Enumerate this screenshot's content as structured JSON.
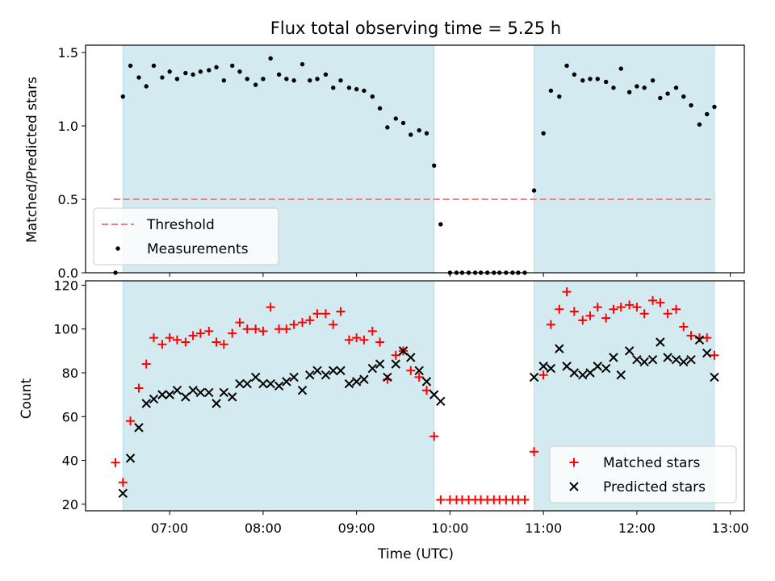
{
  "chart_data": {
    "title": "Flux total observing time = 5.25 h",
    "xlabel": "Time (UTC)",
    "x_range_hours": [
      6.1,
      13.15
    ],
    "x_ticks": [
      {
        "label": "07:00",
        "h": 7
      },
      {
        "label": "08:00",
        "h": 8
      },
      {
        "label": "09:00",
        "h": 9
      },
      {
        "label": "10:00",
        "h": 10
      },
      {
        "label": "11:00",
        "h": 11
      },
      {
        "label": "12:00",
        "h": 12
      },
      {
        "label": "13:00",
        "h": 13
      }
    ],
    "shaded_intervals_hours": [
      [
        6.5,
        9.83
      ],
      [
        10.9,
        12.83
      ]
    ],
    "colors": {
      "shade": "#d4eaf1",
      "shade_edge": "#b5dbe6",
      "threshold": "#f08080",
      "measurements": "#000000",
      "matched": "#ff0000",
      "predicted": "#000000"
    },
    "panels": [
      {
        "type": "scatter",
        "ylabel": "Matched/Predicted stars",
        "ylim": [
          0,
          1.55
        ],
        "yticks": [
          "0.0",
          "0.5",
          "1.0",
          "1.5"
        ],
        "ytick_values": [
          0,
          0.5,
          1.0,
          1.5
        ],
        "legend_position": "lower-left",
        "threshold": {
          "name": "Threshold",
          "value": 0.5,
          "x_range_hours": [
            6.4,
            12.83
          ]
        },
        "series": [
          {
            "name": "Measurements",
            "marker": "dot",
            "points": [
              [
                6.42,
                0.0
              ],
              [
                6.5,
                1.2
              ],
              [
                6.58,
                1.41
              ],
              [
                6.67,
                1.33
              ],
              [
                6.75,
                1.27
              ],
              [
                6.83,
                1.41
              ],
              [
                6.92,
                1.33
              ],
              [
                7.0,
                1.37
              ],
              [
                7.08,
                1.32
              ],
              [
                7.17,
                1.36
              ],
              [
                7.25,
                1.35
              ],
              [
                7.33,
                1.37
              ],
              [
                7.42,
                1.38
              ],
              [
                7.5,
                1.4
              ],
              [
                7.58,
                1.31
              ],
              [
                7.67,
                1.41
              ],
              [
                7.75,
                1.37
              ],
              [
                7.83,
                1.32
              ],
              [
                7.92,
                1.28
              ],
              [
                8.0,
                1.32
              ],
              [
                8.08,
                1.46
              ],
              [
                8.17,
                1.35
              ],
              [
                8.25,
                1.32
              ],
              [
                8.33,
                1.31
              ],
              [
                8.42,
                1.42
              ],
              [
                8.5,
                1.31
              ],
              [
                8.58,
                1.32
              ],
              [
                8.67,
                1.35
              ],
              [
                8.75,
                1.26
              ],
              [
                8.83,
                1.31
              ],
              [
                8.92,
                1.26
              ],
              [
                9.0,
                1.25
              ],
              [
                9.08,
                1.24
              ],
              [
                9.17,
                1.2
              ],
              [
                9.25,
                1.12
              ],
              [
                9.33,
                0.99
              ],
              [
                9.42,
                1.05
              ],
              [
                9.5,
                1.02
              ],
              [
                9.58,
                0.94
              ],
              [
                9.67,
                0.97
              ],
              [
                9.75,
                0.95
              ],
              [
                9.83,
                0.73
              ],
              [
                9.9,
                0.33
              ],
              [
                10.0,
                0.0
              ],
              [
                10.07,
                0.0
              ],
              [
                10.13,
                0.0
              ],
              [
                10.2,
                0.0
              ],
              [
                10.27,
                0.0
              ],
              [
                10.33,
                0.0
              ],
              [
                10.4,
                0.0
              ],
              [
                10.47,
                0.0
              ],
              [
                10.53,
                0.0
              ],
              [
                10.6,
                0.0
              ],
              [
                10.67,
                0.0
              ],
              [
                10.73,
                0.0
              ],
              [
                10.8,
                0.0
              ],
              [
                10.9,
                0.56
              ],
              [
                11.0,
                0.95
              ],
              [
                11.08,
                1.24
              ],
              [
                11.17,
                1.2
              ],
              [
                11.25,
                1.41
              ],
              [
                11.33,
                1.35
              ],
              [
                11.42,
                1.31
              ],
              [
                11.5,
                1.32
              ],
              [
                11.58,
                1.32
              ],
              [
                11.67,
                1.3
              ],
              [
                11.75,
                1.26
              ],
              [
                11.83,
                1.39
              ],
              [
                11.92,
                1.23
              ],
              [
                12.0,
                1.27
              ],
              [
                12.08,
                1.26
              ],
              [
                12.17,
                1.31
              ],
              [
                12.25,
                1.19
              ],
              [
                12.33,
                1.22
              ],
              [
                12.42,
                1.26
              ],
              [
                12.5,
                1.2
              ],
              [
                12.58,
                1.14
              ],
              [
                12.67,
                1.01
              ],
              [
                12.75,
                1.08
              ],
              [
                12.83,
                1.13
              ]
            ]
          }
        ]
      },
      {
        "type": "scatter",
        "ylabel": "Count",
        "ylim": [
          17,
          122
        ],
        "yticks": [
          "20",
          "40",
          "60",
          "80",
          "100",
          "120"
        ],
        "ytick_values": [
          20,
          40,
          60,
          80,
          100,
          120
        ],
        "legend_position": "lower-right",
        "series": [
          {
            "name": "Matched stars",
            "marker": "plus",
            "points": [
              [
                6.42,
                39
              ],
              [
                6.5,
                30
              ],
              [
                6.58,
                58
              ],
              [
                6.67,
                73
              ],
              [
                6.75,
                84
              ],
              [
                6.83,
                96
              ],
              [
                6.92,
                93
              ],
              [
                7.0,
                96
              ],
              [
                7.08,
                95
              ],
              [
                7.17,
                94
              ],
              [
                7.25,
                97
              ],
              [
                7.33,
                98
              ],
              [
                7.42,
                99
              ],
              [
                7.5,
                94
              ],
              [
                7.58,
                93
              ],
              [
                7.67,
                98
              ],
              [
                7.75,
                103
              ],
              [
                7.83,
                100
              ],
              [
                7.92,
                100
              ],
              [
                8.0,
                99
              ],
              [
                8.08,
                110
              ],
              [
                8.17,
                100
              ],
              [
                8.25,
                100
              ],
              [
                8.33,
                102
              ],
              [
                8.42,
                103
              ],
              [
                8.5,
                104
              ],
              [
                8.58,
                107
              ],
              [
                8.67,
                107
              ],
              [
                8.75,
                102
              ],
              [
                8.83,
                108
              ],
              [
                8.92,
                95
              ],
              [
                9.0,
                96
              ],
              [
                9.08,
                95
              ],
              [
                9.17,
                99
              ],
              [
                9.25,
                94
              ],
              [
                9.33,
                77
              ],
              [
                9.42,
                88
              ],
              [
                9.5,
                90
              ],
              [
                9.58,
                81
              ],
              [
                9.67,
                78
              ],
              [
                9.75,
                72
              ],
              [
                9.83,
                51
              ],
              [
                9.9,
                22
              ],
              [
                10.0,
                22
              ],
              [
                10.07,
                22
              ],
              [
                10.13,
                22
              ],
              [
                10.2,
                22
              ],
              [
                10.27,
                22
              ],
              [
                10.33,
                22
              ],
              [
                10.4,
                22
              ],
              [
                10.47,
                22
              ],
              [
                10.53,
                22
              ],
              [
                10.6,
                22
              ],
              [
                10.67,
                22
              ],
              [
                10.73,
                22
              ],
              [
                10.8,
                22
              ],
              [
                10.9,
                44
              ],
              [
                11.0,
                79
              ],
              [
                11.08,
                102
              ],
              [
                11.17,
                109
              ],
              [
                11.25,
                117
              ],
              [
                11.33,
                108
              ],
              [
                11.42,
                104
              ],
              [
                11.5,
                106
              ],
              [
                11.58,
                110
              ],
              [
                11.67,
                105
              ],
              [
                11.75,
                109
              ],
              [
                11.83,
                110
              ],
              [
                11.92,
                111
              ],
              [
                12.0,
                110
              ],
              [
                12.08,
                107
              ],
              [
                12.17,
                113
              ],
              [
                12.25,
                112
              ],
              [
                12.33,
                107
              ],
              [
                12.42,
                109
              ],
              [
                12.5,
                101
              ],
              [
                12.58,
                97
              ],
              [
                12.67,
                96
              ],
              [
                12.75,
                96
              ],
              [
                12.83,
                88
              ]
            ]
          },
          {
            "name": "Predicted stars",
            "marker": "x",
            "points": [
              [
                6.5,
                25
              ],
              [
                6.58,
                41
              ],
              [
                6.67,
                55
              ],
              [
                6.75,
                66
              ],
              [
                6.83,
                68
              ],
              [
                6.92,
                70
              ],
              [
                7.0,
                70
              ],
              [
                7.08,
                72
              ],
              [
                7.17,
                69
              ],
              [
                7.25,
                72
              ],
              [
                7.33,
                71
              ],
              [
                7.42,
                71
              ],
              [
                7.5,
                66
              ],
              [
                7.58,
                71
              ],
              [
                7.67,
                69
              ],
              [
                7.75,
                75
              ],
              [
                7.83,
                75
              ],
              [
                7.92,
                78
              ],
              [
                8.0,
                75
              ],
              [
                8.08,
                75
              ],
              [
                8.17,
                74
              ],
              [
                8.25,
                76
              ],
              [
                8.33,
                78
              ],
              [
                8.42,
                72
              ],
              [
                8.5,
                79
              ],
              [
                8.58,
                81
              ],
              [
                8.67,
                79
              ],
              [
                8.75,
                81
              ],
              [
                8.83,
                81
              ],
              [
                8.92,
                75
              ],
              [
                9.0,
                76
              ],
              [
                9.08,
                77
              ],
              [
                9.17,
                82
              ],
              [
                9.25,
                84
              ],
              [
                9.33,
                78
              ],
              [
                9.42,
                84
              ],
              [
                9.5,
                90
              ],
              [
                9.58,
                87
              ],
              [
                9.67,
                81
              ],
              [
                9.75,
                76
              ],
              [
                9.83,
                70
              ],
              [
                9.9,
                67
              ],
              [
                10.9,
                78
              ],
              [
                11.0,
                83
              ],
              [
                11.08,
                82
              ],
              [
                11.17,
                91
              ],
              [
                11.25,
                83
              ],
              [
                11.33,
                80
              ],
              [
                11.42,
                79
              ],
              [
                11.5,
                80
              ],
              [
                11.58,
                83
              ],
              [
                11.67,
                82
              ],
              [
                11.75,
                87
              ],
              [
                11.83,
                79
              ],
              [
                11.92,
                90
              ],
              [
                12.0,
                86
              ],
              [
                12.08,
                85
              ],
              [
                12.17,
                86
              ],
              [
                12.25,
                94
              ],
              [
                12.33,
                87
              ],
              [
                12.42,
                86
              ],
              [
                12.5,
                85
              ],
              [
                12.58,
                86
              ],
              [
                12.67,
                95
              ],
              [
                12.75,
                89
              ],
              [
                12.83,
                78
              ]
            ]
          }
        ]
      }
    ]
  }
}
